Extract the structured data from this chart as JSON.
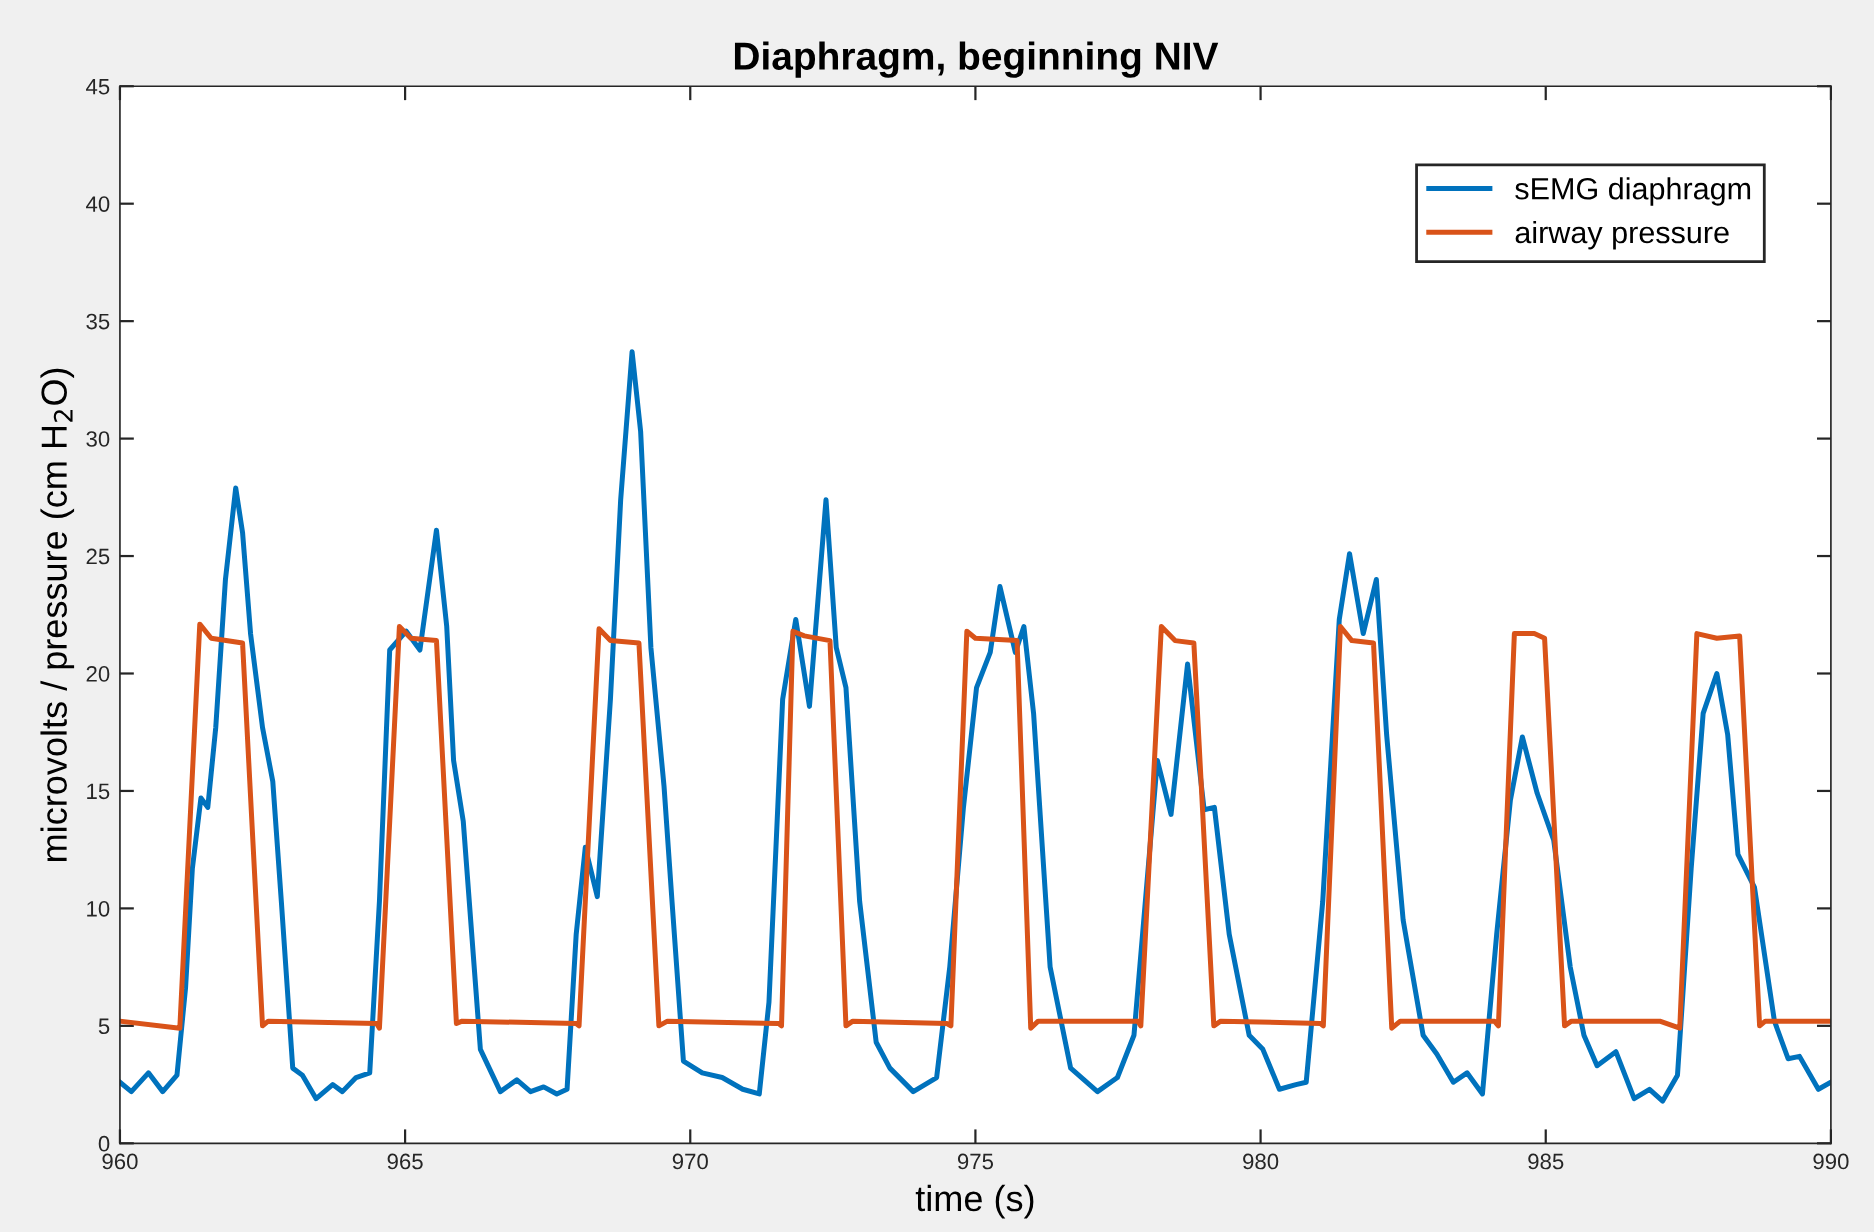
{
  "chart_data": {
    "type": "line",
    "title": "Diaphragm, beginning NIV",
    "xlabel": "time (s)",
    "ylabel": "microvolts / pressure (cm H$_{2}$O)",
    "xlim": [
      960,
      990
    ],
    "xticks": [
      960,
      965,
      970,
      975,
      980,
      985,
      990
    ],
    "ylim": [
      0,
      45
    ],
    "yticks": [
      0,
      5,
      10,
      15,
      20,
      25,
      30,
      35,
      40,
      45
    ],
    "grid": false,
    "legend": "top right",
    "line_style": "solid",
    "marker": "none",
    "series": [
      {
        "name": "sEMG diaphragm",
        "color": "#0072bd",
        "x": [
          960,
          960.2,
          960.5,
          960.75,
          961.0,
          961.15,
          961.27,
          961.42,
          961.54,
          961.68,
          961.85,
          962.03,
          962.15,
          962.29,
          962.5,
          962.68,
          962.83,
          963.03,
          963.2,
          963.44,
          963.73,
          963.9,
          964.14,
          964.38,
          964.55,
          964.73,
          965.02,
          965.26,
          965.55,
          965.73,
          965.85,
          966.02,
          966.32,
          966.67,
          966.96,
          967.2,
          967.43,
          967.66,
          967.84,
          968.0,
          968.16,
          968.37,
          968.6,
          968.78,
          968.98,
          969.13,
          969.31,
          969.54,
          969.68,
          969.88,
          970.21,
          970.56,
          970.92,
          971.21,
          971.38,
          971.62,
          971.85,
          972.09,
          972.38,
          972.56,
          972.73,
          972.97,
          973.26,
          973.5,
          973.91,
          974.32,
          974.55,
          974.79,
          975.02,
          975.26,
          975.43,
          975.7,
          975.85,
          976.02,
          976.31,
          976.67,
          977.14,
          977.49,
          977.78,
          978.19,
          978.43,
          978.72,
          979.01,
          979.19,
          979.45,
          979.8,
          980.04,
          980.33,
          980.62,
          980.8,
          981.09,
          981.38,
          981.56,
          981.8,
          982.03,
          982.21,
          982.5,
          982.85,
          983.09,
          983.38,
          983.62,
          983.89,
          984.14,
          984.38,
          984.59,
          984.85,
          985.14,
          985.43,
          985.67,
          985.9,
          986.23,
          986.55,
          986.82,
          987.05,
          987.31,
          987.55,
          987.76,
          988.0,
          988.19,
          988.37,
          988.66,
          989.01,
          989.25,
          989.45,
          989.78,
          990
        ],
        "values": [
          2.6,
          2.2,
          3.0,
          2.2,
          2.9,
          6.6,
          11.7,
          14.7,
          14.3,
          17.7,
          24.0,
          27.9,
          26.0,
          21.7,
          17.7,
          15.4,
          10.3,
          3.2,
          2.9,
          1.9,
          2.5,
          2.2,
          2.8,
          3.0,
          10.3,
          21.0,
          21.8,
          21.0,
          26.1,
          22.0,
          16.3,
          13.7,
          4.0,
          2.2,
          2.7,
          2.2,
          2.4,
          2.1,
          2.3,
          8.9,
          12.6,
          10.5,
          18.9,
          27.4,
          33.7,
          30.3,
          21.1,
          15.2,
          10.3,
          3.5,
          3.0,
          2.8,
          2.3,
          2.1,
          6.0,
          18.9,
          22.3,
          18.6,
          27.4,
          21.1,
          19.4,
          10.3,
          4.3,
          3.2,
          2.2,
          2.8,
          7.5,
          14.3,
          19.4,
          20.9,
          23.7,
          20.9,
          22.0,
          18.3,
          7.5,
          3.2,
          2.2,
          2.8,
          4.6,
          16.3,
          14.0,
          20.4,
          14.2,
          14.3,
          8.9,
          4.6,
          4.0,
          2.3,
          2.5,
          2.6,
          10.3,
          22.3,
          25.1,
          21.7,
          24.0,
          17.4,
          9.5,
          4.6,
          3.8,
          2.6,
          3.0,
          2.1,
          8.9,
          14.6,
          17.3,
          14.9,
          12.9,
          7.5,
          4.6,
          3.3,
          3.9,
          1.9,
          2.3,
          1.8,
          2.9,
          11.7,
          18.3,
          20.0,
          17.4,
          12.3,
          10.9,
          5.2,
          3.6,
          3.7,
          2.3,
          2.6
        ]
      },
      {
        "name": "airway pressure",
        "color": "#d95319",
        "x": [
          960,
          961.05,
          961.4,
          961.6,
          962.15,
          962.5,
          962.6,
          964.5,
          964.55,
          964.9,
          965.1,
          965.55,
          965.9,
          966.0,
          968.0,
          968.05,
          968.4,
          968.6,
          969.1,
          969.45,
          969.6,
          971.55,
          971.6,
          971.8,
          972.0,
          972.45,
          972.73,
          972.85,
          974.5,
          974.57,
          974.85,
          975.0,
          975.73,
          975.97,
          976.1,
          977.85,
          977.9,
          978.26,
          978.5,
          978.83,
          979.18,
          979.3,
          981.05,
          981.1,
          981.4,
          981.6,
          981.98,
          982.3,
          982.45,
          984.1,
          984.17,
          984.45,
          984.8,
          984.98,
          985.33,
          985.45,
          987.0,
          987.35,
          987.65,
          988.0,
          988.4,
          988.75,
          988.85,
          990
        ],
        "values": [
          5.2,
          4.9,
          22.1,
          21.5,
          21.3,
          5.0,
          5.2,
          5.1,
          4.9,
          22.0,
          21.5,
          21.4,
          5.1,
          5.2,
          5.1,
          5.0,
          21.9,
          21.4,
          21.3,
          5.0,
          5.2,
          5.1,
          5.0,
          21.8,
          21.6,
          21.4,
          5.0,
          5.2,
          5.1,
          5.0,
          21.8,
          21.5,
          21.4,
          4.9,
          5.2,
          5.2,
          5.0,
          22.0,
          21.4,
          21.3,
          5.0,
          5.2,
          5.1,
          5.0,
          22.0,
          21.4,
          21.3,
          4.9,
          5.2,
          5.2,
          5.0,
          21.7,
          21.7,
          21.5,
          5.0,
          5.2,
          5.2,
          4.9,
          21.7,
          21.5,
          21.6,
          5.0,
          5.2,
          5.2
        ]
      }
    ]
  }
}
